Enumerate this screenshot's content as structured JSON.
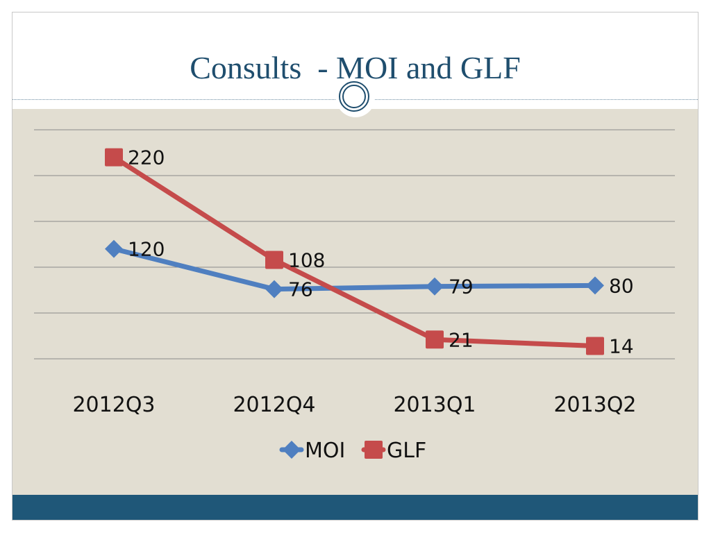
{
  "slide": {
    "title": "Consults  - MOI and GLF"
  },
  "colors": {
    "title": "#1f4e6e",
    "content_bg": "#e2ded2",
    "footer": "#1f5778",
    "moi": "#4f7fc0",
    "glf": "#c54b4b",
    "gridline": "#8a8a8a"
  },
  "chart_data": {
    "type": "line",
    "title": "",
    "xlabel": "",
    "ylabel": "",
    "categories": [
      "2012Q3",
      "2012Q4",
      "2013Q1",
      "2013Q2"
    ],
    "series": [
      {
        "name": "MOI",
        "values": [
          120,
          76,
          79,
          80
        ],
        "marker": "diamond",
        "color": "#4f7fc0"
      },
      {
        "name": "GLF",
        "values": [
          220,
          108,
          21,
          14
        ],
        "marker": "square",
        "color": "#c54b4b"
      }
    ],
    "ylim": [
      0,
      250
    ],
    "gridlines": [
      0,
      50,
      100,
      150,
      200,
      250
    ],
    "grid": true,
    "legend": "bottom",
    "data_labels": true
  }
}
